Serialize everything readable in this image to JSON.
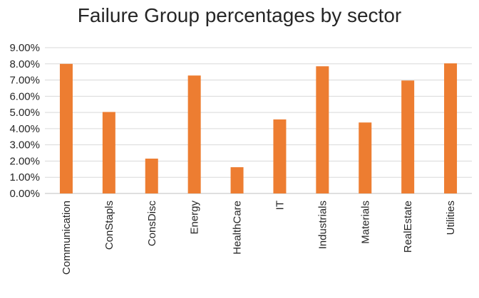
{
  "chart_data": {
    "type": "bar",
    "title": "Failure Group percentages by sector",
    "categories": [
      "Communication",
      "ConStapls",
      "ConsDisc",
      "Energy",
      "HealthCare",
      "IT",
      "Industrials",
      "Materials",
      "RealEstate",
      "Utilities"
    ],
    "values": [
      8.0,
      5.03,
      2.15,
      7.28,
      1.62,
      4.57,
      7.85,
      4.38,
      6.97,
      8.03
    ],
    "value_format": "percent_2dp",
    "yticks": [
      "0.00%",
      "1.00%",
      "2.00%",
      "3.00%",
      "4.00%",
      "5.00%",
      "6.00%",
      "7.00%",
      "8.00%",
      "9.00%"
    ],
    "ylim": [
      0,
      9
    ],
    "xlabel": "",
    "ylabel": "",
    "grid": true,
    "legend": "none",
    "colors": {
      "bar": "#ED7D31",
      "grid": "#D9D9D9",
      "axis": "#BFBFBF",
      "text": "#262626"
    }
  }
}
